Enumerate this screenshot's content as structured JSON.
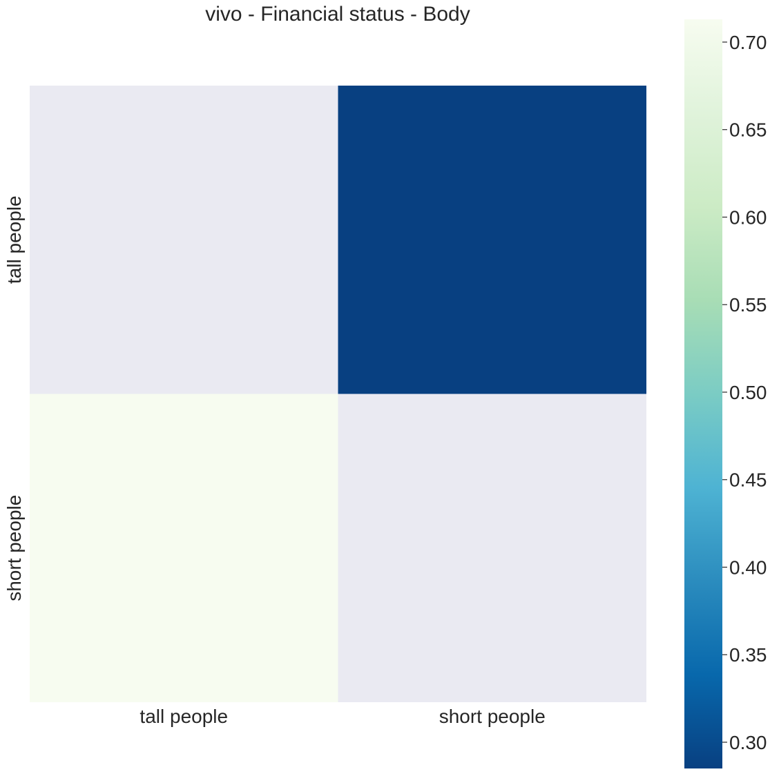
{
  "chart_data": {
    "type": "heatmap",
    "title": "vivo - Financial status - Body",
    "x_categories": [
      "tall people",
      "short people"
    ],
    "y_categories": [
      "tall people",
      "short people"
    ],
    "values": [
      [
        null,
        0.285
      ],
      [
        0.713,
        null
      ]
    ],
    "missing_color": "#eaeaf2",
    "colorbar": {
      "vmin": 0.285,
      "vmax": 0.713,
      "ticks": [
        0.3,
        0.35,
        0.4,
        0.45,
        0.5,
        0.55,
        0.6,
        0.65,
        0.7
      ],
      "tick_labels": [
        "0.30",
        "0.35",
        "0.40",
        "0.45",
        "0.50",
        "0.55",
        "0.60",
        "0.65",
        "0.70"
      ],
      "colormap": "GnBu_r",
      "stops": [
        "#084081",
        "#0868ac",
        "#2b8cbe",
        "#4eb3d3",
        "#7bccc4",
        "#a8ddb5",
        "#ccebc5",
        "#e0f3db",
        "#f7fcf0"
      ]
    },
    "grid": false,
    "legend": "colorbar-right"
  }
}
